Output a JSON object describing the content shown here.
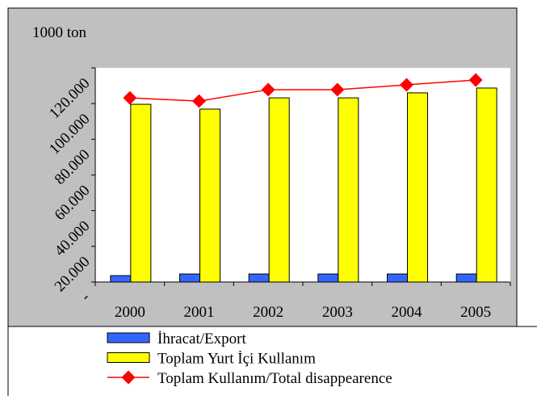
{
  "chart_data": {
    "type": "bar",
    "unit_label": "1000 ton",
    "categories": [
      "2000",
      "2001",
      "2002",
      "2003",
      "2004",
      "2005"
    ],
    "series": [
      {
        "name": "İhracat/Export",
        "type": "bar",
        "color": "#3366ff",
        "values": [
          3600,
          4500,
          4500,
          4500,
          4500,
          4500
        ]
      },
      {
        "name": "Toplam Yurt İçi Kullanım",
        "type": "bar",
        "color": "#ffff00",
        "values": [
          99600,
          96900,
          103200,
          103200,
          106000,
          108700
        ]
      },
      {
        "name": "Toplam Kullanım/Total disappearence",
        "type": "line",
        "color": "#ff0000",
        "values": [
          103200,
          101400,
          107800,
          107800,
          110500,
          113200
        ]
      }
    ],
    "ylim": [
      0,
      120000
    ],
    "yticks": [
      {
        "value": 0,
        "label": "-"
      },
      {
        "value": 20000,
        "label": "20.000"
      },
      {
        "value": 40000,
        "label": "40.000"
      },
      {
        "value": 60000,
        "label": "60.000"
      },
      {
        "value": 80000,
        "label": "80.000"
      },
      {
        "value": 100000,
        "label": "100.000"
      },
      {
        "value": 120000,
        "label": "120.000"
      }
    ],
    "legend": "bottom"
  }
}
